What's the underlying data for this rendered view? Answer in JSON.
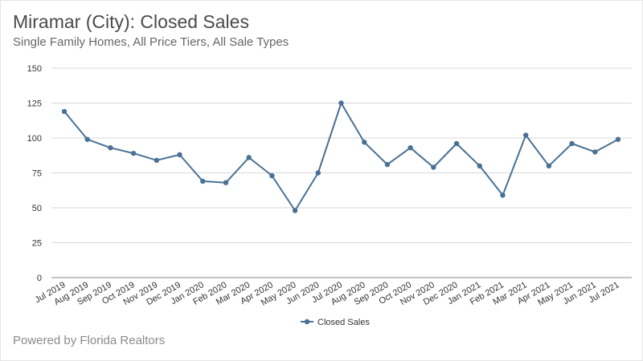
{
  "header": {
    "title": "Miramar (City): Closed Sales",
    "subtitle": "Single Family Homes, All Price Tiers, All Sale Types"
  },
  "footer": {
    "text": "Powered by Florida Realtors"
  },
  "colors": {
    "series": "#4a7194",
    "grid": "#d9d9d9",
    "axis": "#888888"
  },
  "chart_data": {
    "type": "line",
    "title": "Miramar (City): Closed Sales",
    "subtitle": "Single Family Homes, All Price Tiers, All Sale Types",
    "xlabel": "",
    "ylabel": "",
    "ylim": [
      0,
      150
    ],
    "yticks": [
      0,
      25,
      50,
      75,
      100,
      125,
      150
    ],
    "grid": true,
    "legend_position": "bottom",
    "categories": [
      "Jul 2019",
      "Aug 2019",
      "Sep 2019",
      "Oct 2019",
      "Nov 2019",
      "Dec 2019",
      "Jan 2020",
      "Feb 2020",
      "Mar 2020",
      "Apr 2020",
      "May 2020",
      "Jun 2020",
      "Jul 2020",
      "Aug 2020",
      "Sep 2020",
      "Oct 2020",
      "Nov 2020",
      "Dec 2020",
      "Jan 2021",
      "Feb 2021",
      "Mar 2021",
      "Apr 2021",
      "May 2021",
      "Jun 2021",
      "Jul 2021"
    ],
    "series": [
      {
        "name": "Closed Sales",
        "values": [
          119,
          99,
          93,
          89,
          84,
          88,
          69,
          68,
          86,
          73,
          48,
          75,
          125,
          97,
          81,
          93,
          79,
          96,
          80,
          59,
          102,
          80,
          96,
          90,
          99
        ]
      }
    ]
  }
}
